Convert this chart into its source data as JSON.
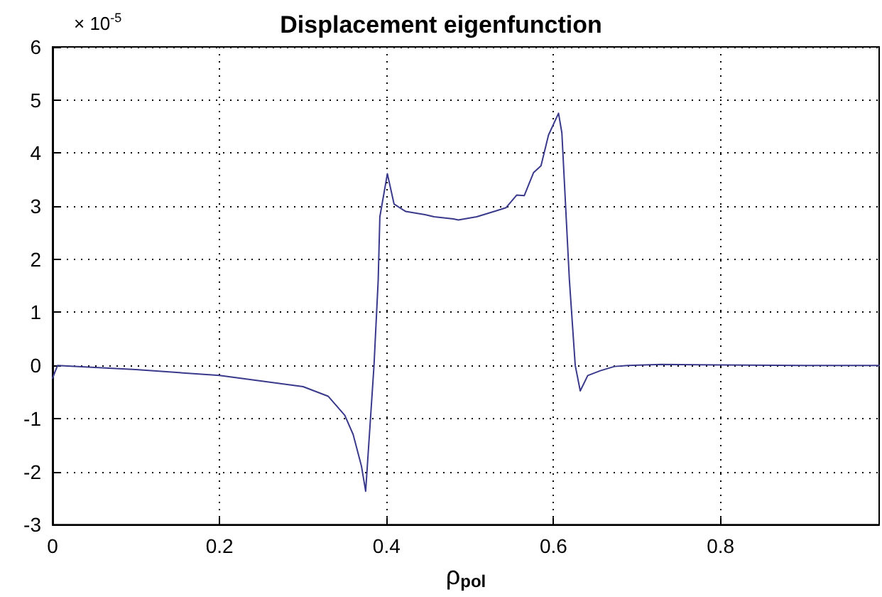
{
  "chart_data": {
    "type": "line",
    "title": "Displacement eigenfunction",
    "xlabel": "ρ$_{pol}$",
    "annotations": [
      "× 10$^{-5}$"
    ],
    "x": [
      0,
      0.006,
      0.1,
      0.2,
      0.3,
      0.33,
      0.35,
      0.36,
      0.37,
      0.375,
      0.385,
      0.39,
      0.392,
      0.401,
      0.409,
      0.423,
      0.446,
      0.457,
      0.48,
      0.486,
      0.508,
      0.531,
      0.543,
      0.556,
      0.565,
      0.576,
      0.585,
      0.594,
      0.606,
      0.61,
      0.619,
      0.626,
      0.632,
      0.641,
      0.656,
      0.673,
      0.689,
      0.729,
      0.797,
      0.9,
      0.99
    ],
    "series": [
      {
        "color": "#3a3a8c",
        "values": [
          -0.24,
          0,
          -0.08,
          -0.19,
          -0.4,
          -0.58,
          -0.94,
          -1.3,
          -1.9,
          -2.37,
          0,
          1.6,
          2.8,
          3.61,
          3.04,
          2.9,
          2.84,
          2.8,
          2.76,
          2.74,
          2.8,
          2.91,
          2.97,
          3.21,
          3.2,
          3.63,
          3.76,
          4.34,
          4.75,
          4.38,
          1.61,
          0,
          -0.48,
          -0.19,
          -0.1,
          -0.02,
          0,
          0.02,
          0.01,
          0,
          0
        ]
      }
    ],
    "xlim": [
      0,
      0.99
    ],
    "ylim": [
      -3,
      6
    ],
    "xticks": [
      0,
      0.2,
      0.4,
      0.6,
      0.8
    ],
    "yticks": [
      -3,
      -2,
      -1,
      0,
      1,
      2,
      3,
      4,
      5,
      6
    ],
    "grid": true,
    "marker": "none",
    "line_style": "solid"
  }
}
